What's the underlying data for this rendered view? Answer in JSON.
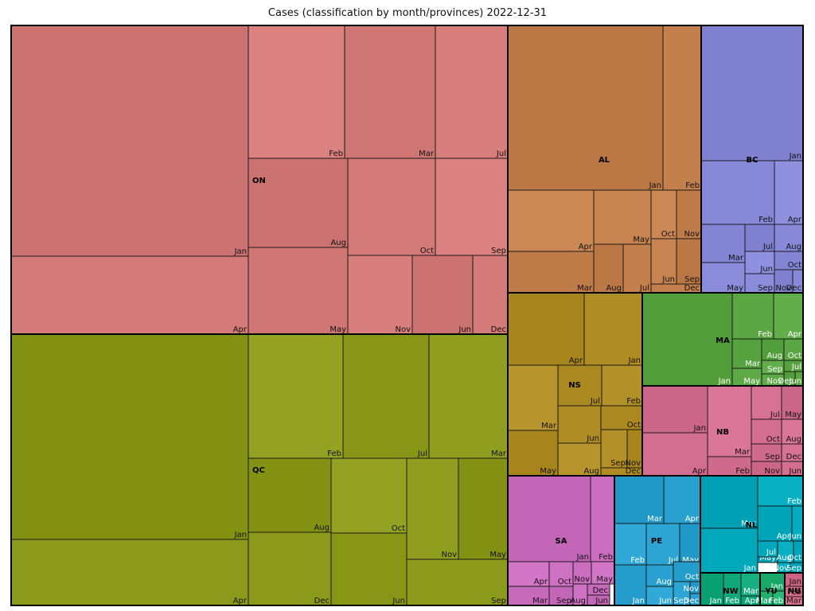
{
  "chart_data": {
    "type": "treemap",
    "title": "Cases (classification by month/provinces)  2022-12-31",
    "provinces": [
      {
        "name": "ON",
        "color": "#d47a78",
        "cells": [
          {
            "m": "Jan",
            "v": 1148
          },
          {
            "m": "Apr",
            "v": 386
          },
          {
            "m": "Feb",
            "v": 294
          },
          {
            "m": "Mar",
            "v": 240
          },
          {
            "m": "Jul",
            "v": 164
          },
          {
            "m": "Aug",
            "v": 204
          },
          {
            "m": "Oct",
            "v": 199
          },
          {
            "m": "Sep",
            "v": 162
          },
          {
            "m": "May",
            "v": 218
          },
          {
            "m": "Nov",
            "v": 135
          },
          {
            "m": "Jun",
            "v": 123
          },
          {
            "m": "Dec",
            "v": 72
          }
        ]
      },
      {
        "name": "QC",
        "color": "#8c9a1c",
        "cells": [
          {
            "m": "Jan",
            "v": 1022
          },
          {
            "m": "Apr",
            "v": 263
          },
          {
            "m": "Feb",
            "v": 221
          },
          {
            "m": "Jul",
            "v": 201
          },
          {
            "m": "Mar",
            "v": 179
          },
          {
            "m": "Aug",
            "v": 151
          },
          {
            "m": "Dec",
            "v": 151
          },
          {
            "m": "Oct",
            "v": 149
          },
          {
            "m": "Jun",
            "v": 149
          },
          {
            "m": "Nov",
            "v": 108
          },
          {
            "m": "May",
            "v": 101
          },
          {
            "m": "Sep",
            "v": 94
          }
        ]
      },
      {
        "name": "AL",
        "color": "#c4804c",
        "cells": [
          {
            "m": "Jan",
            "v": 562
          },
          {
            "m": "Feb",
            "v": 127
          },
          {
            "m": "Apr",
            "v": 143
          },
          {
            "m": "Mar",
            "v": 89
          },
          {
            "m": "May",
            "v": 116
          },
          {
            "m": "Aug",
            "v": 63
          },
          {
            "m": "Jul",
            "v": 58
          },
          {
            "m": "Oct",
            "v": 52
          },
          {
            "m": "Nov",
            "v": 52
          },
          {
            "m": "Jun",
            "v": 55
          },
          {
            "m": "Sep",
            "v": 55
          },
          {
            "m": "Dec",
            "v": 18
          }
        ]
      },
      {
        "name": "BC",
        "color": "#8888d8",
        "cells": [
          {
            "m": "Jan",
            "v": 280
          },
          {
            "m": "Feb",
            "v": 104
          },
          {
            "m": "Apr",
            "v": 52
          },
          {
            "m": "Mar",
            "v": 49
          },
          {
            "m": "May",
            "v": 36
          },
          {
            "m": "Jul",
            "v": 20
          },
          {
            "m": "Aug",
            "v": 19
          },
          {
            "m": "Jun",
            "v": 17
          },
          {
            "m": "Oct",
            "v": 17
          },
          {
            "m": "Sep",
            "v": 11
          },
          {
            "m": "Nov",
            "v": 11
          },
          {
            "m": "Dec",
            "v": 9
          }
        ]
      },
      {
        "name": "NS",
        "color": "#b08c24",
        "cells": [
          {
            "m": "Apr",
            "v": 101
          },
          {
            "m": "Jan",
            "v": 85
          },
          {
            "m": "Mar",
            "v": 94
          },
          {
            "m": "Jul",
            "v": 44
          },
          {
            "m": "Feb",
            "v": 48
          },
          {
            "m": "May",
            "v": 42
          },
          {
            "m": "Jun",
            "v": 37
          },
          {
            "m": "Aug",
            "v": 37
          },
          {
            "m": "Oct",
            "v": 23
          },
          {
            "m": "Sep",
            "v": 30
          },
          {
            "m": "Nov",
            "v": 16
          },
          {
            "m": "Dec",
            "v": 4
          }
        ]
      },
      {
        "name": "MA",
        "color": "#5aa642",
        "cells": [
          {
            "m": "Jan",
            "v": 129
          },
          {
            "m": "Feb",
            "v": 59
          },
          {
            "m": "Apr",
            "v": 53
          },
          {
            "m": "Mar",
            "v": 36
          },
          {
            "m": "May",
            "v": 21
          },
          {
            "m": "Aug",
            "v": 13
          },
          {
            "m": "Oct",
            "v": 13
          },
          {
            "m": "Sep",
            "v": 12
          },
          {
            "m": "Jul",
            "v": 10
          },
          {
            "m": "Nov",
            "v": 11
          },
          {
            "m": "Dec",
            "v": 3
          },
          {
            "m": "Jun",
            "v": 3
          }
        ]
      },
      {
        "name": "NB",
        "color": "#d46e90",
        "cells": [
          {
            "m": "Jan",
            "v": 98
          },
          {
            "m": "Apr",
            "v": 69
          },
          {
            "m": "Mar",
            "v": 57
          },
          {
            "m": "Feb",
            "v": 29
          },
          {
            "m": "Jul",
            "v": 15
          },
          {
            "m": "May",
            "v": 17
          },
          {
            "m": "Oct",
            "v": 19
          },
          {
            "m": "Aug",
            "v": 20
          },
          {
            "m": "Sep",
            "v": 16
          },
          {
            "m": "Dec",
            "v": 16
          },
          {
            "m": "Nov",
            "v": 16
          },
          {
            "m": "Jun",
            "v": 16
          }
        ]
      },
      {
        "name": "SA",
        "color": "#cc6ec0",
        "cells": [
          {
            "m": "Jan",
            "v": 167
          },
          {
            "m": "Feb",
            "v": 53
          },
          {
            "m": "Apr",
            "v": 33
          },
          {
            "m": "Mar",
            "v": 20
          },
          {
            "m": "Oct",
            "v": 26
          },
          {
            "m": "Sep",
            "v": 18
          },
          {
            "m": "Nov",
            "v": 21
          },
          {
            "m": "May",
            "v": 18
          },
          {
            "m": "Dec",
            "v": 10
          },
          {
            "m": "Aug",
            "v": 8
          },
          {
            "m": "Jun",
            "v": 12
          }
        ]
      },
      {
        "name": "PE",
        "color": "#28a0d0",
        "cells": [
          {
            "m": "Mar",
            "v": 56
          },
          {
            "m": "Apr",
            "v": 42
          },
          {
            "m": "Feb",
            "v": 48
          },
          {
            "m": "Jan",
            "v": 38
          },
          {
            "m": "Jul",
            "v": 25
          },
          {
            "m": "May",
            "v": 17
          },
          {
            "m": "Aug",
            "v": 27
          },
          {
            "m": "Jun",
            "v": 16
          },
          {
            "m": "Oct",
            "v": 14
          },
          {
            "m": "Sep",
            "v": 11
          },
          {
            "m": "Nov",
            "v": 2
          },
          {
            "m": "Dec",
            "v": 2
          }
        ]
      },
      {
        "name": "NL",
        "color": "#00a8bc",
        "cells": [
          {
            "m": "Mar",
            "v": 90
          },
          {
            "m": "Jan",
            "v": 87
          },
          {
            "m": "Feb",
            "v": 32
          },
          {
            "m": "Apr",
            "v": 20
          },
          {
            "m": "Jun",
            "v": 9
          },
          {
            "m": "May",
            "v": 10
          },
          {
            "m": "Jul",
            "v": 7
          },
          {
            "m": "Aug",
            "v": 4
          },
          {
            "m": "Oct",
            "v": 4
          },
          {
            "m": "Nov",
            "v": 1
          },
          {
            "m": "Sep",
            "v": 1
          }
        ]
      },
      {
        "name": "NW",
        "color": "#10a878",
        "cells": [
          {
            "m": "Jan",
            "v": 30
          },
          {
            "m": "Feb",
            "v": 23
          },
          {
            "m": "Mar",
            "v": 14
          },
          {
            "m": "Apr",
            "v": 7
          }
        ]
      },
      {
        "name": "YU",
        "color": "#20b070",
        "cells": [
          {
            "m": "Jan",
            "v": 10
          },
          {
            "m": "Mar",
            "v": 4
          },
          {
            "m": "Feb",
            "v": 3
          }
        ]
      },
      {
        "name": "NU",
        "color": "#d66a8c",
        "cells": [
          {
            "m": "Jan",
            "v": 6
          },
          {
            "m": "Feb",
            "v": 6
          },
          {
            "m": "Mar",
            "v": 4
          }
        ]
      }
    ]
  },
  "layout_note": ""
}
